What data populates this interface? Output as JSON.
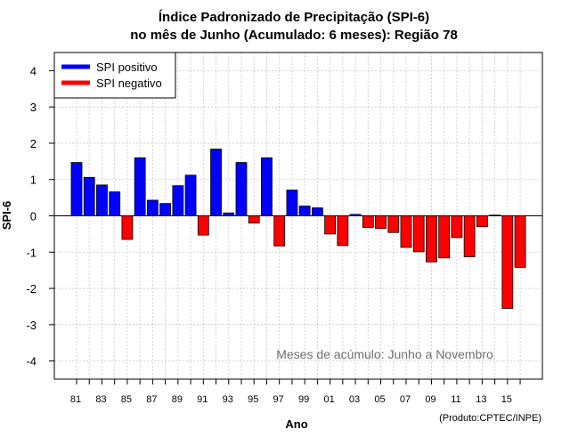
{
  "chart_data": {
    "type": "bar",
    "title": "Índice Padronizado de Precipitação (SPI-6)",
    "subtitle": "no mês de Junho (Acumulado: 6 meses): Região 78",
    "xlabel": "Ano",
    "ylabel": "SPI-6",
    "ylim": [
      -4.5,
      4.5
    ],
    "yticks": [
      -4,
      -3,
      -2,
      -1,
      0,
      1,
      2,
      3,
      4
    ],
    "grid": true,
    "categories": [
      "81",
      "82",
      "83",
      "84",
      "85",
      "86",
      "87",
      "88",
      "89",
      "90",
      "91",
      "92",
      "93",
      "94",
      "95",
      "96",
      "97",
      "98",
      "99",
      "00",
      "01",
      "02",
      "03",
      "04",
      "05",
      "06",
      "07",
      "08",
      "09",
      "10",
      "11",
      "12",
      "13",
      "14",
      "15",
      "16"
    ],
    "x_tick_labels": [
      "81",
      "83",
      "85",
      "87",
      "89",
      "91",
      "93",
      "95",
      "97",
      "99",
      "01",
      "03",
      "05",
      "07",
      "09",
      "11",
      "13",
      "15"
    ],
    "values": [
      1.47,
      1.06,
      0.85,
      0.66,
      -0.65,
      1.6,
      0.43,
      0.34,
      0.83,
      1.12,
      -0.53,
      1.84,
      0.08,
      1.47,
      -0.2,
      1.6,
      -0.83,
      0.71,
      0.27,
      0.22,
      -0.5,
      -0.82,
      0.04,
      -0.32,
      -0.35,
      -0.46,
      -0.87,
      -0.99,
      -1.27,
      -1.16,
      -0.6,
      -1.13,
      -0.3,
      0.02,
      -2.55,
      -1.42
    ],
    "legend": {
      "position": "top-left",
      "entries": [
        {
          "label": "SPI positivo",
          "color": "#0000ff"
        },
        {
          "label": "SPI negativo",
          "color": "#ff0000"
        }
      ]
    },
    "annotation": "Meses de acúmulo: Junho a Novembro",
    "credit": "(Produto:CPTEC/INPE)",
    "colors": {
      "positive": "#0000ff",
      "negative": "#ff0000",
      "grid": "#c8c8c8",
      "zero_line": "#000000"
    }
  }
}
